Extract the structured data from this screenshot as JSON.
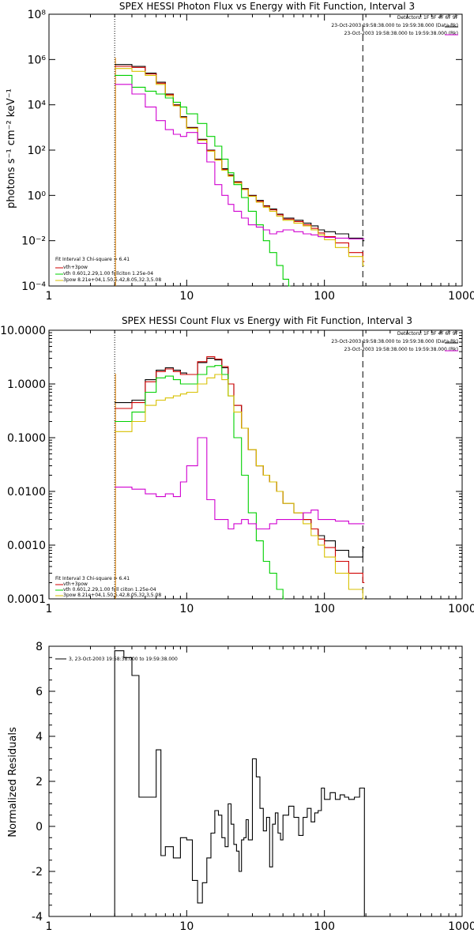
{
  "colors": {
    "black": "#000000",
    "red": "#d00000",
    "green": "#00d000",
    "yellow": "#d8c000",
    "magenta": "#d000d0",
    "orange": "#e08000",
    "frame": "#000000"
  },
  "chart_data": [
    {
      "type": "line",
      "title": "SPEX HESSI Photon Flux vs Energy with Fit Function, Interval 3",
      "xlabel": "",
      "ylabel": "photons s⁻¹ cm⁻² keV⁻¹",
      "xscale": "log",
      "yscale": "log",
      "xlim": [
        1,
        1000
      ],
      "ylim": [
        0.0001,
        100000000
      ],
      "x_ticks": [
        "1",
        "10",
        "100",
        "1000"
      ],
      "y_ticks": [
        "10⁻⁴",
        "10⁻²",
        "10⁰",
        "10²",
        "10⁴",
        "10⁶",
        "10⁸"
      ],
      "header_lines": [
        "Detectors: 1F 3F 4F 6F 9F",
        "23-Oct-2003 19:58:38.000 to 19:59:38.000 (Data-Bk)",
        "23-Oct-2003 19:58:38.000 to 19:59:38.000 (Bk)"
      ],
      "legend": [
        "Fit Interval 3   Chi-square = 6.41",
        "vth+3pow",
        "vth 0.601,2.29,1.00  fullciton 1.25e-04",
        "3pow  8.21e+04,1.50,5.42,8.05,32.3,5.08"
      ],
      "vlines": [
        3,
        190
      ],
      "series": [
        {
          "name": "",
          "color": "black",
          "x": [
            3,
            4,
            5,
            6,
            7,
            8,
            9,
            10,
            12,
            14,
            16,
            18,
            20,
            22,
            25,
            28,
            32,
            36,
            40,
            45,
            50,
            60,
            70,
            80,
            90,
            100,
            120,
            150,
            190
          ],
          "y": [
            600000,
            500000,
            250000,
            100000,
            30000,
            10000,
            3000,
            1000,
            300,
            100,
            40,
            15,
            8,
            4,
            2,
            1,
            0.6,
            0.35,
            0.25,
            0.15,
            0.1,
            0.08,
            0.06,
            0.045,
            0.03,
            0.025,
            0.02,
            0.013,
            0.01
          ]
        },
        {
          "name": "",
          "color": "red",
          "x": [
            3,
            4,
            5,
            6,
            7,
            8,
            9,
            10,
            12,
            14,
            16,
            18,
            20,
            22,
            25,
            28,
            32,
            36,
            40,
            45,
            50,
            60,
            70,
            80,
            90,
            100,
            120,
            150,
            190
          ],
          "y": [
            500000,
            450000,
            230000,
            90000,
            28000,
            9500,
            2800,
            950,
            280,
            95,
            38,
            14,
            7.5,
            3.8,
            1.9,
            0.95,
            0.55,
            0.33,
            0.23,
            0.14,
            0.09,
            0.07,
            0.05,
            0.035,
            0.022,
            0.015,
            0.008,
            0.003,
            0.0012
          ]
        },
        {
          "name": "",
          "color": "yellow",
          "x": [
            3,
            4,
            5,
            6,
            7,
            8,
            9,
            10,
            12,
            14,
            16,
            18,
            20,
            22,
            25,
            28,
            32,
            36,
            40,
            45,
            50,
            60,
            70,
            80,
            90,
            100,
            120,
            150,
            190
          ],
          "y": [
            400000,
            300000,
            200000,
            80000,
            25000,
            9000,
            2700,
            900,
            270,
            90,
            36,
            13,
            7,
            3.5,
            1.8,
            0.9,
            0.5,
            0.3,
            0.2,
            0.12,
            0.08,
            0.06,
            0.045,
            0.03,
            0.018,
            0.011,
            0.005,
            0.002,
            0.0008
          ]
        },
        {
          "name": "",
          "color": "green",
          "x": [
            3,
            4,
            5,
            6,
            7,
            8,
            9,
            10,
            12,
            14,
            16,
            18,
            20,
            22,
            25,
            28,
            32,
            36,
            40,
            45,
            50,
            55
          ],
          "y": [
            200000,
            60000,
            40000,
            30000,
            20000,
            13000,
            8000,
            4000,
            1500,
            400,
            150,
            40,
            10,
            3,
            0.8,
            0.2,
            0.05,
            0.01,
            0.003,
            0.0008,
            0.0002,
            0.0001
          ]
        },
        {
          "name": "",
          "color": "magenta",
          "x": [
            3,
            4,
            5,
            6,
            7,
            8,
            9,
            10,
            12,
            14,
            16,
            18,
            20,
            22,
            25,
            28,
            32,
            36,
            40,
            45,
            50,
            60,
            70,
            80,
            90,
            100,
            120,
            150,
            190
          ],
          "y": [
            80000,
            30000,
            8000,
            2000,
            800,
            500,
            400,
            600,
            200,
            30,
            3,
            1,
            0.4,
            0.2,
            0.1,
            0.05,
            0.04,
            0.03,
            0.02,
            0.025,
            0.03,
            0.025,
            0.02,
            0.018,
            0.015,
            0.014,
            0.013,
            0.012,
            0.012
          ]
        }
      ]
    },
    {
      "type": "line",
      "title": "SPEX HESSI Count Flux vs Energy with Fit Function, Interval 3",
      "xlabel": "",
      "ylabel": "",
      "xscale": "log",
      "yscale": "log",
      "xlim": [
        1,
        1000
      ],
      "ylim": [
        0.0001,
        10
      ],
      "x_ticks": [
        "1",
        "10",
        "100",
        "1000"
      ],
      "y_ticks": [
        "0.0001",
        "0.0010",
        "0.0100",
        "0.1000",
        "1.0000",
        "10.0000"
      ],
      "header_lines": [
        "Detectors: 1F 3F 4F 6F 9F",
        "23-Oct-2003 19:58:38.000 to 19:59:38.000 (Data-Bk)",
        "23-Oct-2003 19:58:38.000 to 19:59:38.000 (Bk)"
      ],
      "legend": [
        "Fit Interval 3   Chi-square = 6.41",
        "vth+3pow",
        "vth 0.601,2.29,1.00  full ciiton 1.25e-04",
        "3pow  8.21e+04,1.50,5.42,8.05,32.3,5.08"
      ],
      "vlines": [
        3,
        190
      ],
      "series": [
        {
          "name": "",
          "color": "black",
          "x": [
            3,
            4,
            5,
            6,
            7,
            8,
            9,
            10,
            12,
            14,
            16,
            18,
            20,
            22,
            25,
            28,
            32,
            36,
            40,
            45,
            50,
            60,
            70,
            80,
            90,
            100,
            120,
            150,
            190
          ],
          "y": [
            0.45,
            0.5,
            1.2,
            1.8,
            2,
            1.8,
            1.6,
            1.5,
            2.5,
            3,
            2.8,
            2,
            1,
            0.4,
            0.15,
            0.06,
            0.03,
            0.02,
            0.015,
            0.01,
            0.006,
            0.004,
            0.003,
            0.002,
            0.0015,
            0.0012,
            0.0008,
            0.0006,
            0.0009
          ]
        },
        {
          "name": "",
          "color": "red",
          "x": [
            3,
            4,
            5,
            6,
            7,
            8,
            9,
            10,
            12,
            14,
            16,
            18,
            20,
            22,
            25,
            28,
            32,
            36,
            40,
            45,
            50,
            60,
            70,
            80,
            90,
            100,
            120,
            150,
            190
          ],
          "y": [
            0.35,
            0.45,
            1.1,
            1.7,
            1.9,
            1.7,
            1.5,
            1.5,
            2.6,
            3.2,
            2.9,
            2.1,
            1,
            0.4,
            0.15,
            0.06,
            0.03,
            0.02,
            0.015,
            0.01,
            0.006,
            0.004,
            0.003,
            0.002,
            0.0013,
            0.0009,
            0.0005,
            0.0003,
            0.0002
          ]
        },
        {
          "name": "",
          "color": "green",
          "x": [
            3,
            4,
            5,
            6,
            7,
            8,
            9,
            10,
            12,
            14,
            16,
            18,
            20,
            22,
            25,
            28,
            32,
            36,
            40,
            45,
            50
          ],
          "y": [
            0.2,
            0.3,
            0.7,
            1.3,
            1.4,
            1.2,
            1,
            1,
            1.5,
            2.1,
            2.2,
            1.5,
            0.6,
            0.1,
            0.02,
            0.004,
            0.0012,
            0.0005,
            0.0003,
            0.00015,
            0.0001
          ]
        },
        {
          "name": "",
          "color": "yellow",
          "x": [
            3,
            4,
            5,
            6,
            7,
            8,
            9,
            10,
            12,
            14,
            16,
            18,
            20,
            22,
            25,
            28,
            32,
            36,
            40,
            45,
            50,
            60,
            70,
            80,
            90,
            100,
            120,
            150,
            190
          ],
          "y": [
            0.13,
            0.2,
            0.4,
            0.5,
            0.55,
            0.6,
            0.65,
            0.7,
            1,
            1.3,
            1.5,
            1.2,
            0.6,
            0.3,
            0.15,
            0.06,
            0.03,
            0.02,
            0.015,
            0.01,
            0.006,
            0.004,
            0.0025,
            0.0015,
            0.001,
            0.0006,
            0.0003,
            0.00015,
            0.0001
          ]
        },
        {
          "name": "",
          "color": "magenta",
          "x": [
            3,
            4,
            5,
            6,
            7,
            8,
            9,
            10,
            12,
            14,
            16,
            18,
            20,
            22,
            25,
            28,
            32,
            36,
            40,
            45,
            50,
            60,
            70,
            80,
            90,
            100,
            120,
            150,
            190
          ],
          "y": [
            0.012,
            0.011,
            0.009,
            0.008,
            0.009,
            0.008,
            0.015,
            0.03,
            0.1,
            0.007,
            0.003,
            0.003,
            0.002,
            0.0025,
            0.003,
            0.0025,
            0.002,
            0.002,
            0.0025,
            0.003,
            0.003,
            0.003,
            0.004,
            0.0045,
            0.003,
            0.003,
            0.0028,
            0.0025,
            0.0025
          ]
        }
      ]
    },
    {
      "type": "line",
      "title": "",
      "xlabel": "",
      "ylabel": "Normalized Residuals",
      "xscale": "log",
      "yscale": "linear",
      "xlim": [
        1,
        1000
      ],
      "ylim": [
        -4,
        8
      ],
      "x_ticks": [
        "1",
        "10",
        "100",
        "1000"
      ],
      "y_ticks": [
        "-4",
        "-2",
        "0",
        "2",
        "4",
        "6",
        "8"
      ],
      "legend": [
        "3, 23-Oct-2003 19:58:38.000 to 19:59:38.000"
      ],
      "series": [
        {
          "name": "",
          "color": "black",
          "x": [
            3,
            3.5,
            4,
            4.5,
            5,
            6,
            6.5,
            7,
            8,
            9,
            10,
            11,
            12,
            13,
            14,
            15,
            16,
            17,
            18,
            19,
            20,
            21,
            22,
            23,
            24,
            25,
            26,
            27,
            28,
            30,
            32,
            34,
            36,
            38,
            40,
            42,
            44,
            46,
            48,
            50,
            55,
            60,
            65,
            70,
            75,
            80,
            85,
            90,
            95,
            100,
            110,
            120,
            130,
            140,
            150,
            165,
            180,
            190
          ],
          "y": [
            7.8,
            7.5,
            6.7,
            1.3,
            1.3,
            3.4,
            -1.3,
            -0.9,
            -1.4,
            -0.5,
            -0.6,
            -2.4,
            -3.4,
            -2.5,
            -1.4,
            -0.3,
            0.7,
            0.5,
            -0.5,
            -0.9,
            1,
            0.1,
            -0.8,
            -1.1,
            -2,
            -0.6,
            -0.5,
            0.3,
            -0.6,
            3,
            2.2,
            0.8,
            -0.2,
            0.4,
            -1.8,
            0.1,
            0.6,
            -0.3,
            -0.6,
            0.5,
            0.9,
            0.4,
            -0.4,
            0.4,
            0.8,
            0.2,
            0.6,
            0.7,
            1.7,
            1.2,
            1.5,
            1.2,
            1.4,
            1.3,
            1.2,
            1.3,
            1.7,
            1.7
          ]
        }
      ]
    }
  ]
}
